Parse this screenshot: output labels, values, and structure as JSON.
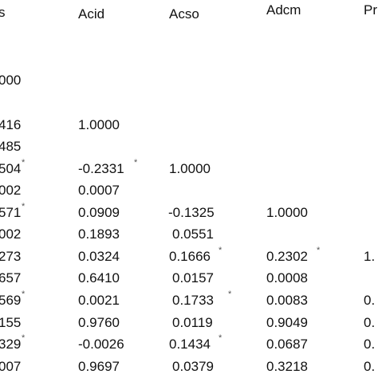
{
  "table": {
    "headers": [
      "s",
      "Acid",
      "Acso",
      "Adcm",
      "Pr"
    ],
    "rows": [
      [
        "000",
        "",
        "",
        "",
        ""
      ],
      [
        "416",
        "1.0000",
        "",
        "",
        ""
      ],
      [
        "485",
        "",
        "",
        "",
        ""
      ],
      [
        "504",
        "-0.2331",
        "1.0000",
        "",
        ""
      ],
      [
        "002",
        "0.0007",
        "",
        "",
        ""
      ],
      [
        "571",
        "0.0909",
        "-0.1325",
        "1.0000",
        ""
      ],
      [
        "002",
        "0.1893",
        "0.0551",
        "",
        ""
      ],
      [
        "273",
        "0.0324",
        "0.1666",
        "0.2302",
        "1."
      ],
      [
        "657",
        "0.6410",
        "0.0157",
        "0.0008",
        ""
      ],
      [
        "569",
        "0.0021",
        "0.1733",
        "0.0083",
        "0."
      ],
      [
        "155",
        "0.9760",
        "0.0119",
        "0.9049",
        "0."
      ],
      [
        "329",
        "-0.0026",
        "0.1434",
        "0.0687",
        "0."
      ],
      [
        "007",
        "0.9697",
        "0.0379",
        "0.3218",
        "0."
      ]
    ],
    "star_symbol": "*"
  }
}
